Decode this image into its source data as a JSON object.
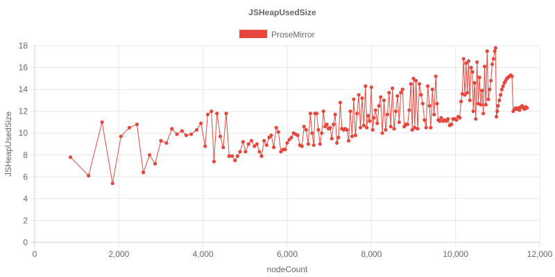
{
  "chart_data": {
    "type": "line",
    "title": "JSHeapUsedSize",
    "xlabel": "nodeCount",
    "ylabel": "JSHeapUsedSize",
    "xlim": [
      0,
      12000
    ],
    "ylim": [
      0,
      18
    ],
    "x_ticks": [
      "0",
      "2,000",
      "4,000",
      "6,000",
      "8,000",
      "10,000",
      "12,000"
    ],
    "y_ticks": [
      "0",
      "2",
      "4",
      "6",
      "8",
      "10",
      "12",
      "14",
      "16",
      "18"
    ],
    "grid": true,
    "legend_position": "top-center",
    "series": [
      {
        "name": "ProseMirror",
        "color": "#e8453c",
        "points": [
          [
            850,
            7.8
          ],
          [
            1280,
            6.1
          ],
          [
            1600,
            11.0
          ],
          [
            1850,
            5.4
          ],
          [
            2050,
            9.7
          ],
          [
            2250,
            10.5
          ],
          [
            2430,
            10.8
          ],
          [
            2580,
            6.4
          ],
          [
            2730,
            8.0
          ],
          [
            2860,
            7.2
          ],
          [
            3000,
            9.3
          ],
          [
            3130,
            9.1
          ],
          [
            3260,
            10.4
          ],
          [
            3380,
            9.9
          ],
          [
            3500,
            10.2
          ],
          [
            3600,
            9.8
          ],
          [
            3720,
            9.9
          ],
          [
            3850,
            10.3
          ],
          [
            3950,
            10.9
          ],
          [
            4050,
            8.8
          ],
          [
            4110,
            11.7
          ],
          [
            4200,
            12.0
          ],
          [
            4260,
            7.4
          ],
          [
            4330,
            11.8
          ],
          [
            4410,
            9.7
          ],
          [
            4480,
            8.7
          ],
          [
            4550,
            11.8
          ],
          [
            4620,
            7.9
          ],
          [
            4690,
            7.9
          ],
          [
            4760,
            7.5
          ],
          [
            4820,
            7.9
          ],
          [
            4880,
            8.3
          ],
          [
            4950,
            9.2
          ],
          [
            5010,
            8.3
          ],
          [
            5080,
            9.0
          ],
          [
            5150,
            9.3
          ],
          [
            5220,
            8.8
          ],
          [
            5280,
            9.0
          ],
          [
            5340,
            8.3
          ],
          [
            5390,
            7.9
          ],
          [
            5450,
            9.3
          ],
          [
            5510,
            8.9
          ],
          [
            5570,
            9.6
          ],
          [
            5620,
            9.8
          ],
          [
            5680,
            8.7
          ],
          [
            5740,
            10.5
          ],
          [
            5790,
            10.1
          ],
          [
            5850,
            8.3
          ],
          [
            5900,
            8.5
          ],
          [
            5950,
            8.5
          ],
          [
            6000,
            9.1
          ],
          [
            6050,
            9.4
          ],
          [
            6100,
            9.6
          ],
          [
            6150,
            10.0
          ],
          [
            6200,
            9.9
          ],
          [
            6250,
            9.8
          ],
          [
            6300,
            8.9
          ],
          [
            6350,
            8.8
          ],
          [
            6400,
            10.6
          ],
          [
            6450,
            10.3
          ],
          [
            6500,
            9.0
          ],
          [
            6550,
            11.8
          ],
          [
            6590,
            10.0
          ],
          [
            6630,
            8.9
          ],
          [
            6660,
            11.8
          ],
          [
            6700,
            11.8
          ],
          [
            6740,
            10.3
          ],
          [
            6780,
            9.0
          ],
          [
            6820,
            10.0
          ],
          [
            6860,
            12.0
          ],
          [
            6900,
            10.6
          ],
          [
            6940,
            10.8
          ],
          [
            6980,
            10.4
          ],
          [
            7020,
            10.5
          ],
          [
            7060,
            9.5
          ],
          [
            7100,
            10.8
          ],
          [
            7140,
            11.7
          ],
          [
            7180,
            9.1
          ],
          [
            7220,
            9.6
          ],
          [
            7260,
            12.8
          ],
          [
            7300,
            10.4
          ],
          [
            7340,
            10.3
          ],
          [
            7380,
            10.4
          ],
          [
            7420,
            10.3
          ],
          [
            7460,
            9.3
          ],
          [
            7500,
            12.0
          ],
          [
            7540,
            9.7
          ],
          [
            7580,
            13.1
          ],
          [
            7620,
            9.8
          ],
          [
            7660,
            11.8
          ],
          [
            7700,
            13.5
          ],
          [
            7740,
            10.5
          ],
          [
            7780,
            13.2
          ],
          [
            7820,
            10.7
          ],
          [
            7860,
            14.3
          ],
          [
            7890,
            10.5
          ],
          [
            7920,
            11.6
          ],
          [
            7960,
            11.1
          ],
          [
            8000,
            14.2
          ],
          [
            8030,
            10.3
          ],
          [
            8060,
            11.4
          ],
          [
            8100,
            12.1
          ],
          [
            8140,
            10.9
          ],
          [
            8180,
            12.5
          ],
          [
            8220,
            13.3
          ],
          [
            8260,
            10.0
          ],
          [
            8300,
            13.0
          ],
          [
            8340,
            10.3
          ],
          [
            8380,
            11.7
          ],
          [
            8420,
            13.7
          ],
          [
            8460,
            10.6
          ],
          [
            8500,
            14.1
          ],
          [
            8540,
            10.4
          ],
          [
            8580,
            12.0
          ],
          [
            8620,
            13.4
          ],
          [
            8660,
            11.0
          ],
          [
            8700,
            13.7
          ],
          [
            8740,
            14.0
          ],
          [
            8780,
            10.6
          ],
          [
            8820,
            10.8
          ],
          [
            8860,
            10.8
          ],
          [
            8900,
            12.1
          ],
          [
            8940,
            14.5
          ],
          [
            8970,
            10.3
          ],
          [
            9000,
            15.0
          ],
          [
            9030,
            10.5
          ],
          [
            9060,
            14.8
          ],
          [
            9100,
            10.4
          ],
          [
            9140,
            14.5
          ],
          [
            9180,
            13.5
          ],
          [
            9220,
            12.7
          ],
          [
            9260,
            11.2
          ],
          [
            9300,
            10.5
          ],
          [
            9340,
            14.3
          ],
          [
            9380,
            12.5
          ],
          [
            9410,
            10.5
          ],
          [
            9450,
            14.0
          ],
          [
            9490,
            11.7
          ],
          [
            9530,
            15.2
          ],
          [
            9560,
            12.7
          ],
          [
            9590,
            11.2
          ],
          [
            9620,
            11.1
          ],
          [
            9660,
            11.4
          ],
          [
            9700,
            11.1
          ],
          [
            9740,
            11.2
          ],
          [
            9780,
            11.1
          ],
          [
            9820,
            11.3
          ],
          [
            9860,
            10.7
          ],
          [
            9900,
            10.8
          ],
          [
            9940,
            11.3
          ],
          [
            9980,
            11.3
          ],
          [
            10020,
            11.2
          ],
          [
            10060,
            11.5
          ],
          [
            10100,
            11.4
          ],
          [
            10130,
            12.9
          ],
          [
            10160,
            13.6
          ],
          [
            10190,
            16.8
          ],
          [
            10220,
            13.5
          ],
          [
            10250,
            16.4
          ],
          [
            10280,
            13.7
          ],
          [
            10310,
            16.6
          ],
          [
            10340,
            13.0
          ],
          [
            10370,
            16.0
          ],
          [
            10400,
            15.6
          ],
          [
            10420,
            12.0
          ],
          [
            10450,
            14.6
          ],
          [
            10480,
            11.3
          ],
          [
            10510,
            16.5
          ],
          [
            10540,
            12.7
          ],
          [
            10570,
            15.1
          ],
          [
            10600,
            12.6
          ],
          [
            10630,
            13.9
          ],
          [
            10660,
            11.8
          ],
          [
            10690,
            16.1
          ],
          [
            10720,
            12.6
          ],
          [
            10750,
            17.5
          ],
          [
            10780,
            13.1
          ],
          [
            10810,
            14.0
          ],
          [
            10840,
            14.8
          ],
          [
            10870,
            16.3
          ],
          [
            10900,
            16.8
          ],
          [
            10930,
            17.5
          ],
          [
            10950,
            17.8
          ],
          [
            10970,
            11.5
          ],
          [
            10990,
            12.0
          ],
          [
            11010,
            12.5
          ],
          [
            11040,
            13.0
          ],
          [
            11070,
            13.5
          ],
          [
            11100,
            14.0
          ],
          [
            11130,
            14.3
          ],
          [
            11160,
            14.6
          ],
          [
            11190,
            14.8
          ],
          [
            11220,
            15.0
          ],
          [
            11250,
            15.1
          ],
          [
            11280,
            15.2
          ],
          [
            11310,
            15.3
          ],
          [
            11340,
            15.2
          ],
          [
            11370,
            12.0
          ],
          [
            11400,
            12.2
          ],
          [
            11430,
            12.3
          ],
          [
            11460,
            12.2
          ],
          [
            11490,
            12.3
          ],
          [
            11520,
            12.1
          ],
          [
            11550,
            12.4
          ],
          [
            11580,
            12.5
          ],
          [
            11610,
            12.3
          ],
          [
            11640,
            12.2
          ],
          [
            11670,
            12.4
          ],
          [
            11700,
            12.3
          ]
        ]
      }
    ]
  }
}
